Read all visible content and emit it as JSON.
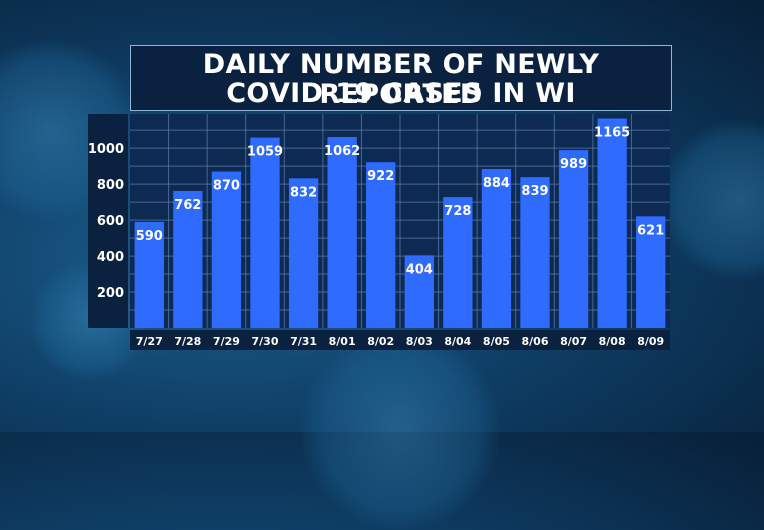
{
  "chart_data": {
    "type": "bar",
    "title_lines": [
      "DAILY NUMBER OF NEWLY REPORTED",
      "COVID-19 CASES IN WI"
    ],
    "categories": [
      "7/27",
      "7/28",
      "7/29",
      "7/30",
      "7/31",
      "8/01",
      "8/02",
      "8/03",
      "8/04",
      "8/05",
      "8/06",
      "8/07",
      "8/08",
      "8/09"
    ],
    "values": [
      590,
      762,
      870,
      1059,
      832,
      1062,
      922,
      404,
      728,
      884,
      839,
      989,
      1165,
      621
    ],
    "yticks": [
      "200",
      "400",
      "600",
      "800",
      "1000"
    ],
    "ytick_values": [
      200,
      400,
      600,
      800,
      1000
    ],
    "ylim": [
      0,
      1190
    ],
    "grid": true,
    "colors": {
      "bar": "#2f6bff",
      "label_bg": "#1f57e6",
      "grid": "#6d8fbf"
    }
  }
}
